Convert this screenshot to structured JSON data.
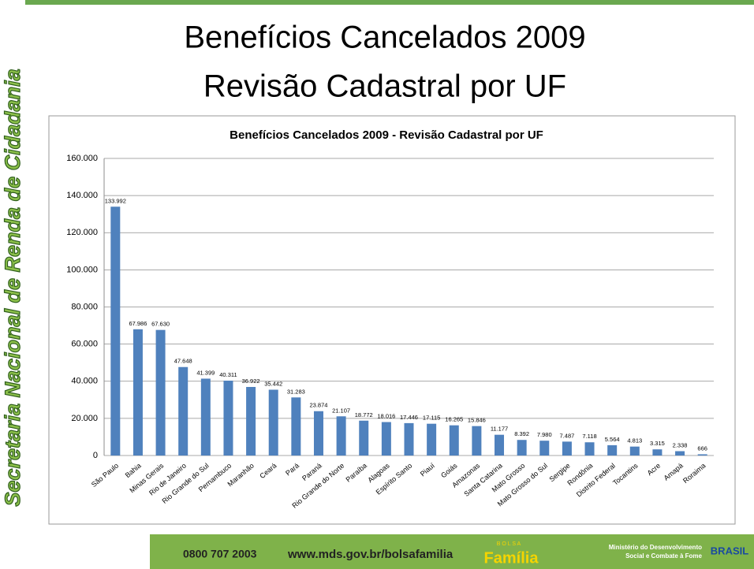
{
  "slide": {
    "title_lines": [
      "Benefícios Cancelados 2009",
      "Revisão Cadastral por UF"
    ],
    "sidebar": "Secretaria Nacional de Renda de Cidadania",
    "footer": {
      "phone": "0800 707 2003",
      "url": "www.mds.gov.br/bolsafamilia",
      "logo_top": "B O L S A",
      "logo_bottom": "Família",
      "ministry_lines": [
        "Ministério do Desenvolvimento",
        "Social e Combate à Fome"
      ],
      "brasil": "BRASIL"
    }
  },
  "chart_data": {
    "type": "bar",
    "title": "Benefícios Cancelados 2009 - Revisão Cadastral por UF",
    "categories": [
      "São Paulo",
      "Bahia",
      "Minas Gerais",
      "Rio de Janeiro",
      "Rio Grande do Sul",
      "Pernambuco",
      "Maranhão",
      "Ceará",
      "Pará",
      "Paraná",
      "Rio Grande do Norte",
      "Paraíba",
      "Alagoas",
      "Espírito Santo",
      "Piauí",
      "Goiás",
      "Amazonas",
      "Santa Catarina",
      "Mato Grosso",
      "Mato Grosso do Sul",
      "Sergipe",
      "Rondônia",
      "Distrito Federal",
      "Tocantins",
      "Acre",
      "Amapá",
      "Roraima"
    ],
    "values": [
      133992,
      67986,
      67630,
      47648,
      41399,
      40311,
      36922,
      35442,
      31283,
      23874,
      21107,
      18772,
      18016,
      17446,
      17115,
      16265,
      15846,
      11177,
      8392,
      7980,
      7487,
      7118,
      5564,
      4813,
      3315,
      2338,
      666
    ],
    "value_labels": [
      "133.992",
      "67.986",
      "67.630",
      "47.648",
      "41.399",
      "40.311",
      "36.922",
      "35.442",
      "31.283",
      "23.874",
      "21.107",
      "18.772",
      "18.016",
      "17.446",
      "17.115",
      "16.265",
      "15.846",
      "11.177",
      "8.392",
      "7.980",
      "7.487",
      "7.118",
      "5.564",
      "4.813",
      "3.315",
      "2.338",
      "666"
    ],
    "color": "#4f81bd",
    "ylim": [
      0,
      160000
    ],
    "yticks": [
      0,
      {
        "value": 20000,
        "label": "20.000"
      },
      {
        "value": 40000,
        "label": "40.000"
      },
      {
        "value": 60000,
        "label": "60.000"
      },
      {
        "value": 80000,
        "label": "80.000"
      },
      {
        "value": 100000,
        "label": "100.000"
      },
      {
        "value": 120000,
        "label": "120.000"
      },
      {
        "value": 140000,
        "label": "140.000"
      },
      {
        "value": 160000,
        "label": "160.000"
      }
    ],
    "grid": true
  }
}
